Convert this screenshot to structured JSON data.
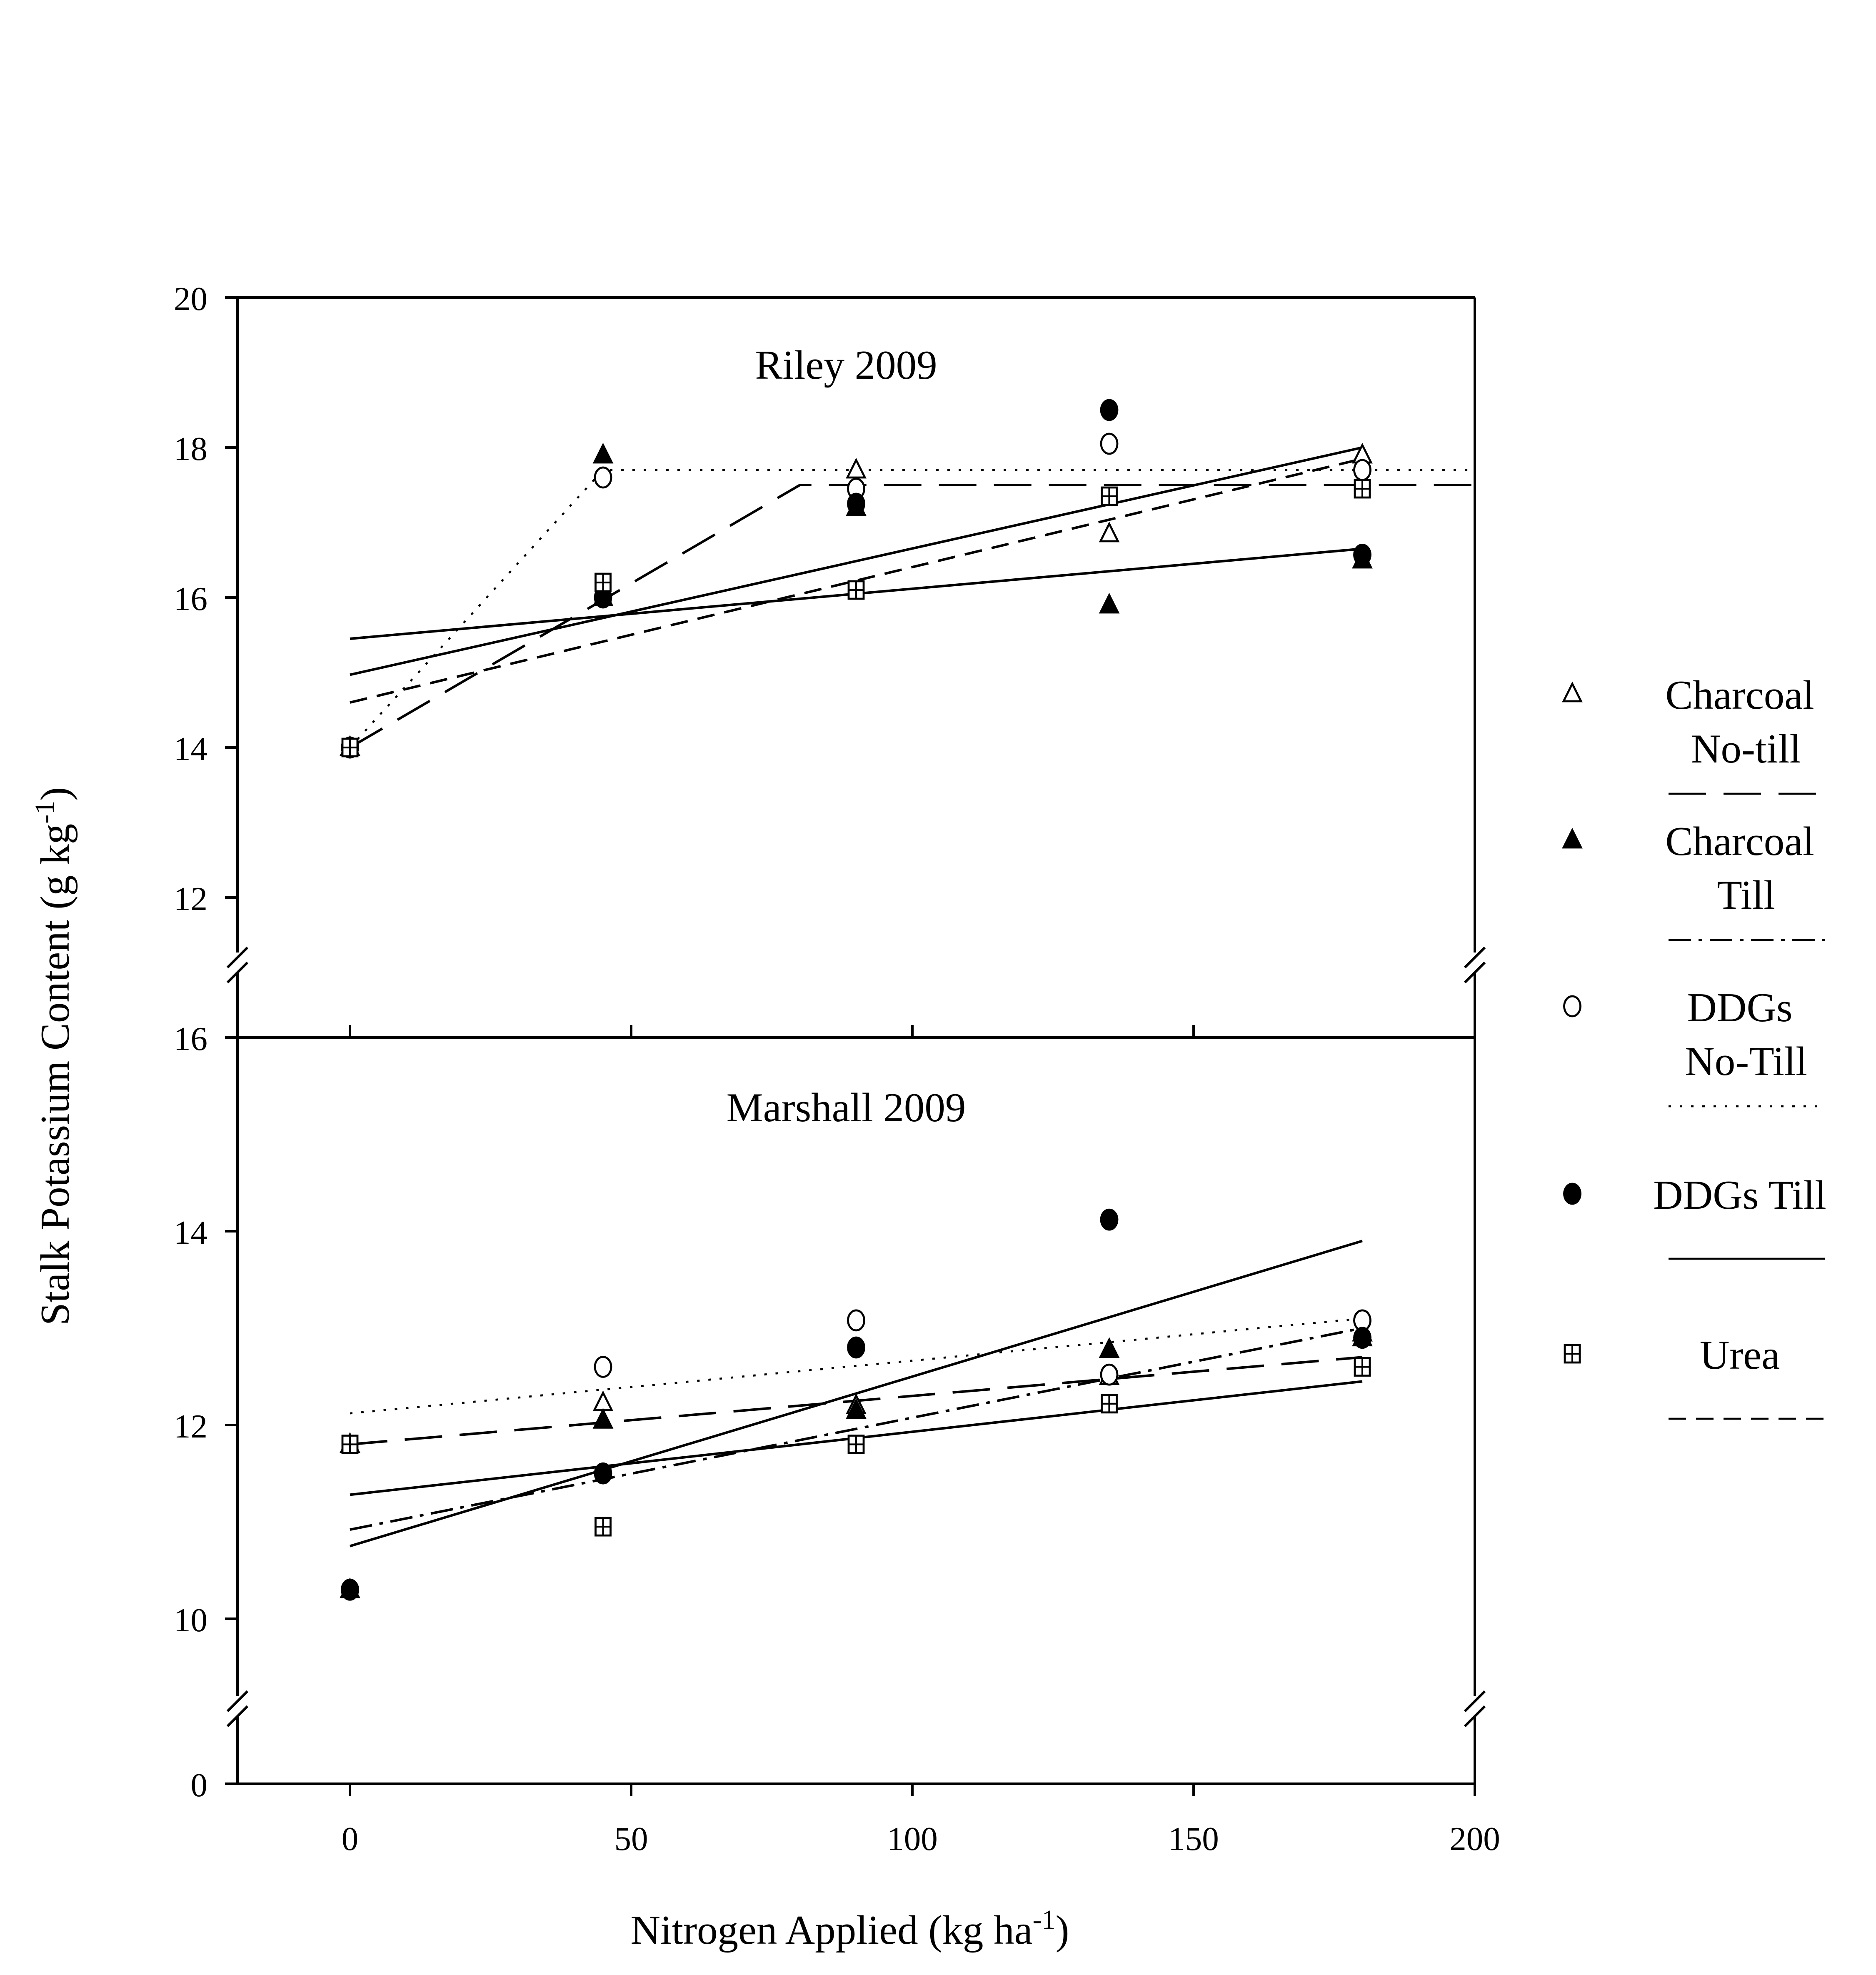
{
  "chart_data": {
    "type": "scatter",
    "ylabel": "Stalk Potassium Content (g kg-1)",
    "ylabel_parts": {
      "main": "Stalk Potassium Content (g kg",
      "sup": "-1",
      "end": ")"
    },
    "xlabel": "Nitrogen Applied (kg ha-1)",
    "xlabel_parts": {
      "main": "Nitrogen Applied (kg ha",
      "sup": "-1",
      "end": ")"
    },
    "xlim": [
      -20,
      200
    ],
    "x_ticks": [
      0,
      50,
      100,
      150,
      200
    ],
    "x_tick_labels": [
      "0",
      "50",
      "100",
      "150",
      "200"
    ],
    "x": [
      0,
      45,
      90,
      135,
      180
    ],
    "legend": [
      {
        "name": "Charcoal No-till",
        "line1": "Charcoal",
        "line2": "No-till",
        "marker": "open-triangle",
        "line": "long-dash"
      },
      {
        "name": "Charcoal Till",
        "line1": "Charcoal",
        "line2": "Till",
        "marker": "filled-triangle",
        "line": "dash-dot"
      },
      {
        "name": "DDGs No-Till",
        "line1": "DDGs",
        "line2": "No-Till",
        "marker": "open-circle",
        "line": "dotted"
      },
      {
        "name": "DDGs Till",
        "line1": "DDGs Till",
        "line2": "",
        "marker": "filled-circle",
        "line": "solid"
      },
      {
        "name": "Urea",
        "line1": "Urea",
        "line2": "",
        "marker": "crossed-square",
        "line": "short-dash"
      }
    ],
    "legend_placement": "right",
    "panels": [
      {
        "title": "Riley 2009",
        "ylim": [
          11,
          20
        ],
        "y_ticks": [
          12,
          14,
          16,
          18,
          20
        ],
        "y_tick_labels": [
          "12",
          "14",
          "16",
          "18",
          "20"
        ],
        "series": [
          {
            "name": "Charcoal No-till",
            "values": [
              14.0,
              16.0,
              17.7,
              16.85,
              17.9
            ]
          },
          {
            "name": "Charcoal Till",
            "values": [
              14.0,
              17.9,
              17.2,
              15.9,
              16.5
            ]
          },
          {
            "name": "DDGs No-Till",
            "values": [
              14.0,
              17.6,
              17.45,
              18.05,
              17.7
            ]
          },
          {
            "name": "DDGs Till",
            "values": [
              14.0,
              16.0,
              17.25,
              18.5,
              16.57
            ]
          },
          {
            "name": "Urea",
            "values": [
              14.0,
              16.2,
              16.1,
              17.35,
              17.45
            ]
          }
        ],
        "fits": [
          {
            "series": "Charcoal No-till",
            "style": "long-dash",
            "points": [
              [
                0,
                14.0
              ],
              [
                80,
                17.5
              ],
              [
                200,
                17.5
              ]
            ]
          },
          {
            "series": "DDGs No-Till",
            "style": "dotted",
            "points": [
              [
                0,
                14.0
              ],
              [
                45,
                17.7
              ],
              [
                200,
                17.7
              ]
            ]
          },
          {
            "series": "DDGs Till",
            "style": "solid",
            "points": [
              [
                0,
                14.97
              ],
              [
                180,
                18.0
              ]
            ]
          },
          {
            "series": "Charcoal Till",
            "style": "solid",
            "points": [
              [
                0,
                15.45
              ],
              [
                180,
                16.65
              ]
            ]
          },
          {
            "series": "Urea",
            "style": "short-dash",
            "points": [
              [
                0,
                14.6
              ],
              [
                180,
                17.85
              ]
            ]
          }
        ]
      },
      {
        "title": "Marshall 2009",
        "ylim": [
          9,
          16
        ],
        "y_ticks": [
          10,
          12,
          14,
          16
        ],
        "y_tick_labels": [
          "10",
          "12",
          "14",
          "16"
        ],
        "axis_zero_label": "0",
        "series": [
          {
            "name": "Charcoal No-till",
            "values": [
              11.8,
              12.23,
              12.2,
              12.5,
              12.9
            ]
          },
          {
            "name": "Charcoal Till",
            "values": [
              10.3,
              12.05,
              12.15,
              12.78,
              12.95
            ]
          },
          {
            "name": "DDGs No-Till",
            "values": [
              10.3,
              12.6,
              13.08,
              12.52,
              13.08
            ]
          },
          {
            "name": "DDGs Till",
            "values": [
              10.3,
              11.5,
              12.8,
              14.12,
              12.9
            ]
          },
          {
            "name": "Urea",
            "values": [
              11.8,
              10.95,
              11.8,
              12.22,
              12.6
            ]
          }
        ],
        "fits": [
          {
            "series": "DDGs No-Till",
            "style": "dotted",
            "points": [
              [
                0,
                12.12
              ],
              [
                180,
                13.1
              ]
            ]
          },
          {
            "series": "Charcoal No-till",
            "style": "long-dash",
            "points": [
              [
                0,
                11.8
              ],
              [
                180,
                12.7
              ]
            ]
          },
          {
            "series": "DDGs Till",
            "style": "solid",
            "points": [
              [
                0,
                10.75
              ],
              [
                180,
                13.9
              ]
            ]
          },
          {
            "series": "Urea",
            "style": "solid",
            "points": [
              [
                0,
                11.28
              ],
              [
                180,
                12.45
              ]
            ]
          },
          {
            "series": "Charcoal Till",
            "style": "dash-dot",
            "points": [
              [
                0,
                10.92
              ],
              [
                180,
                13.0
              ]
            ]
          }
        ]
      }
    ]
  }
}
